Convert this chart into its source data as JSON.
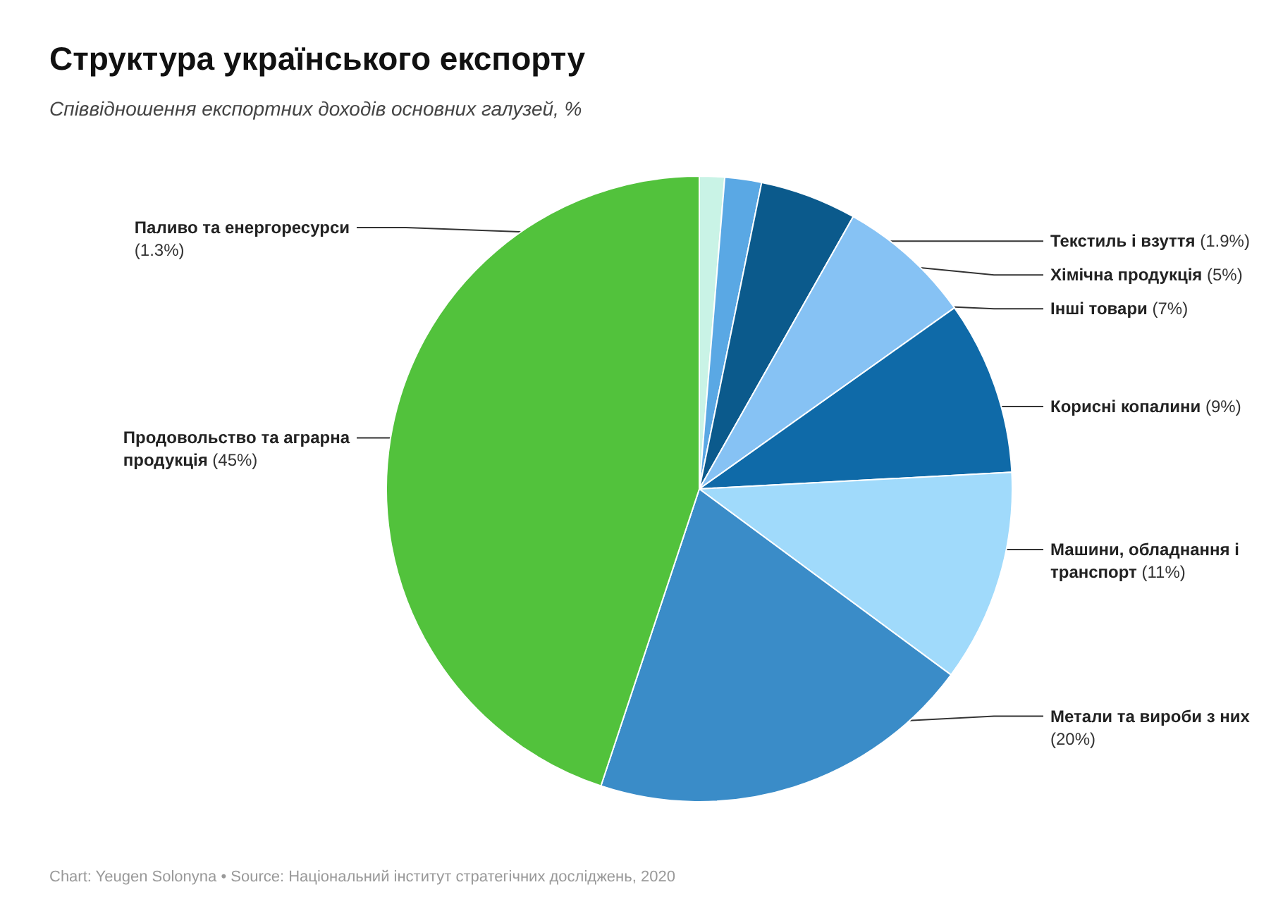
{
  "chart_data": {
    "type": "pie",
    "title": "Структура українського експорту",
    "subtitle": "Співвідношення експортних доходів основних галузей, %",
    "categories": [
      "Паливо та енергоресурси",
      "Текстиль і взуття",
      "Хімічна продукція",
      "Інші товари",
      "Корисні копалини",
      "Машини, обладнання і транспорт",
      "Метали та вироби з них",
      "Продовольство та аграрна продукція"
    ],
    "values": [
      1.3,
      1.9,
      5,
      7,
      9,
      11,
      20,
      45
    ],
    "colors": [
      "#c9f3e6",
      "#5aa8e4",
      "#0b5a8c",
      "#86c2f4",
      "#0f6aa8",
      "#a0dafb",
      "#3a8cc8",
      "#52c23c"
    ],
    "value_labels": [
      "(1.3%)",
      "(1.9%)",
      "(5%)",
      "(7%)",
      "(9%)",
      "(11%)",
      "(20%)",
      "(45%)"
    ],
    "legend": false,
    "annotations": [
      "Chart: Yeugen Solonyna • Source: Національний інститут стратегічних досліджень, 2020"
    ]
  }
}
